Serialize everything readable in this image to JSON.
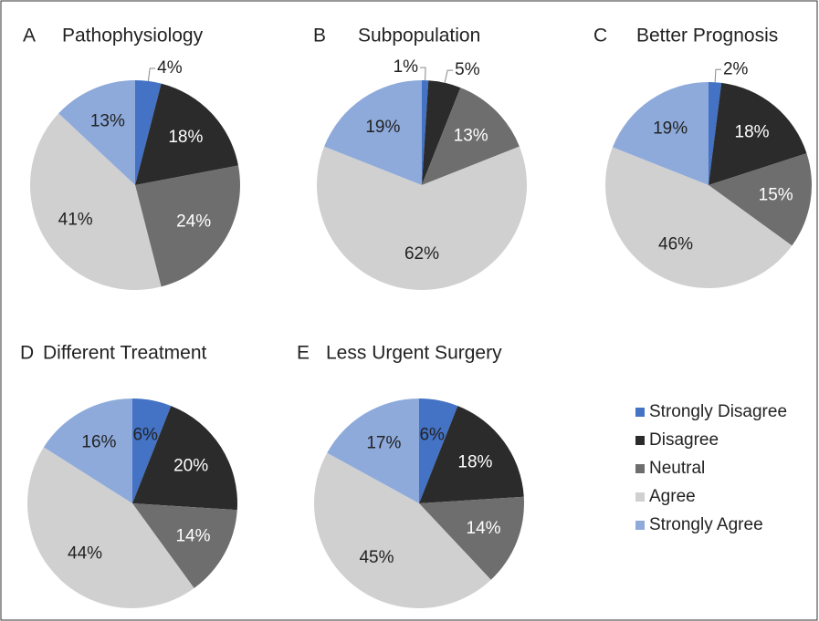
{
  "chart_data": [
    {
      "type": "pie",
      "panel": "A",
      "title": "Pathophysiology",
      "categories": [
        "Strongly Disagree",
        "Disagree",
        "Neutral",
        "Agree",
        "Strongly Agree"
      ],
      "values": [
        4,
        18,
        24,
        41,
        13
      ],
      "value_labels": [
        "4%",
        "18%",
        "24%",
        "41%",
        "13%"
      ],
      "colors": [
        "#4472c4",
        "#2b2b2b",
        "#6e6e6e",
        "#d0d0d0",
        "#8eaadb"
      ]
    },
    {
      "type": "pie",
      "panel": "B",
      "title": "Subpopulation",
      "categories": [
        "Strongly Disagree",
        "Disagree",
        "Neutral",
        "Agree",
        "Strongly Agree"
      ],
      "values": [
        1,
        5,
        13,
        62,
        19
      ],
      "value_labels": [
        "1%",
        "5%",
        "13%",
        "62%",
        "19%"
      ],
      "colors": [
        "#4472c4",
        "#2b2b2b",
        "#6e6e6e",
        "#d0d0d0",
        "#8eaadb"
      ]
    },
    {
      "type": "pie",
      "panel": "C",
      "title": "Better Prognosis",
      "categories": [
        "Strongly Disagree",
        "Disagree",
        "Neutral",
        "Agree",
        "Strongly Agree"
      ],
      "values": [
        2,
        18,
        15,
        46,
        19
      ],
      "value_labels": [
        "2%",
        "18%",
        "15%",
        "46%",
        "19%"
      ],
      "colors": [
        "#4472c4",
        "#2b2b2b",
        "#6e6e6e",
        "#d0d0d0",
        "#8eaadb"
      ]
    },
    {
      "type": "pie",
      "panel": "D",
      "title": "Different Treatment",
      "categories": [
        "Strongly Disagree",
        "Disagree",
        "Neutral",
        "Agree",
        "Strongly Agree"
      ],
      "values": [
        6,
        20,
        14,
        44,
        16
      ],
      "value_labels": [
        "6%",
        "20%",
        "14%",
        "44%",
        "16%"
      ],
      "colors": [
        "#4472c4",
        "#2b2b2b",
        "#6e6e6e",
        "#d0d0d0",
        "#8eaadb"
      ]
    },
    {
      "type": "pie",
      "panel": "E",
      "title": "Less Urgent Surgery",
      "categories": [
        "Strongly Disagree",
        "Disagree",
        "Neutral",
        "Agree",
        "Strongly Agree"
      ],
      "values": [
        6,
        18,
        14,
        45,
        17
      ],
      "value_labels": [
        "6%",
        "18%",
        "14%",
        "45%",
        "17%"
      ],
      "colors": [
        "#4472c4",
        "#2b2b2b",
        "#6e6e6e",
        "#d0d0d0",
        "#8eaadb"
      ]
    }
  ]
}
